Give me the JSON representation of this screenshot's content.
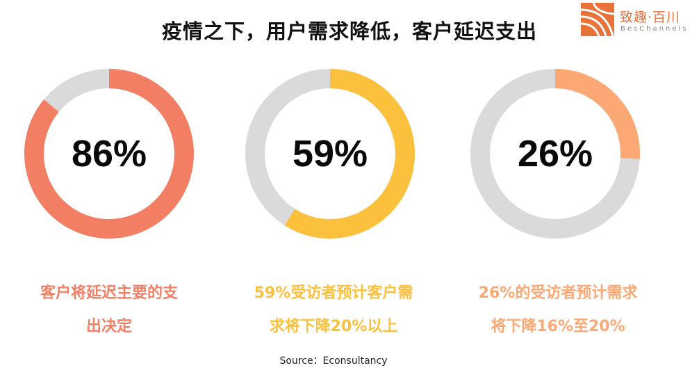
{
  "header": {
    "title": "疫情之下，用户需求降低，客户延迟支出"
  },
  "logo": {
    "name_cn": "致趣·百川",
    "name_en": "BesChannels",
    "brand_color": "#E8733A"
  },
  "track_color": "#DADADA",
  "chart_data": [
    {
      "type": "pie",
      "value": 86,
      "label": "86%",
      "color": "#F27F63",
      "caption_lines": [
        "客户将延迟主要的支",
        "出决定"
      ]
    },
    {
      "type": "pie",
      "value": 59,
      "label": "59%",
      "color": "#FBC03C",
      "caption_lines": [
        "59%受访者预计客户需",
        "求将下降20%以上"
      ]
    },
    {
      "type": "pie",
      "value": 26,
      "label": "26%",
      "color": "#FBA874",
      "caption_lines": [
        "26%的受访者预计需求",
        "将下降16%至20%"
      ]
    }
  ],
  "footer": {
    "source": "Source：Econsultancy"
  }
}
